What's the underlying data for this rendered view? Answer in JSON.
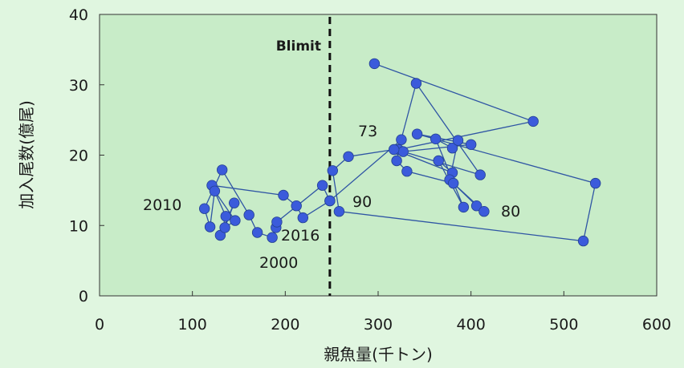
{
  "chart_data": {
    "type": "scatter",
    "xlabel": "親魚量(千トン)",
    "ylabel": "加入尾数(億尾)",
    "xlim": [
      0,
      600
    ],
    "ylim": [
      0,
      40
    ],
    "x_ticks": [
      "0",
      "100",
      "200",
      "300",
      "400",
      "500",
      "600"
    ],
    "y_ticks": [
      "0",
      "10",
      "20",
      "30",
      "40"
    ],
    "reference_line": {
      "label": "Blimit",
      "x": 248,
      "style": "dashed"
    },
    "annotations": [
      "73",
      "80",
      "90",
      "2000",
      "2010",
      "2016"
    ],
    "series": [
      {
        "connected": true,
        "color": "#3b5bdb",
        "line_color": "#2f55a4",
        "points": [
          [
            296,
            33
          ],
          [
            467,
            24.8
          ],
          [
            322,
            20.8
          ],
          [
            341,
            30.2
          ],
          [
            410,
            17.2
          ],
          [
            327,
            20.5
          ],
          [
            400,
            21.5
          ],
          [
            342,
            23
          ],
          [
            534,
            16
          ],
          [
            521,
            7.8
          ],
          [
            258,
            12
          ],
          [
            251,
            17.8
          ],
          [
            268,
            19.8
          ],
          [
            317,
            20.8
          ],
          [
            380,
            17.5
          ],
          [
            365,
            19.2
          ],
          [
            392,
            12.6
          ],
          [
            362,
            22.3
          ],
          [
            380,
            21
          ],
          [
            386,
            22.1
          ],
          [
            377,
            16.5
          ],
          [
            406,
            12.8
          ],
          [
            414,
            12
          ],
          [
            381,
            16
          ],
          [
            331,
            17.7
          ],
          [
            320,
            19.2
          ],
          [
            325,
            22.2
          ],
          [
            248,
            13.5
          ],
          [
            219,
            11.1
          ],
          [
            212,
            12.8
          ],
          [
            198,
            14.3
          ],
          [
            121,
            15.7
          ],
          [
            136,
            11.3
          ],
          [
            130,
            8.6
          ],
          [
            145,
            13.2
          ],
          [
            135,
            9.7
          ],
          [
            146,
            10.7
          ],
          [
            124,
            14.9
          ],
          [
            119,
            9.8
          ],
          [
            113,
            12.4
          ],
          [
            132,
            17.9
          ],
          [
            161,
            11.5
          ],
          [
            170,
            9
          ],
          [
            186,
            8.3
          ],
          [
            190,
            9.7
          ],
          [
            191,
            10.5
          ],
          [
            240,
            15.7
          ],
          [
            248,
            13.5
          ]
        ]
      }
    ]
  }
}
